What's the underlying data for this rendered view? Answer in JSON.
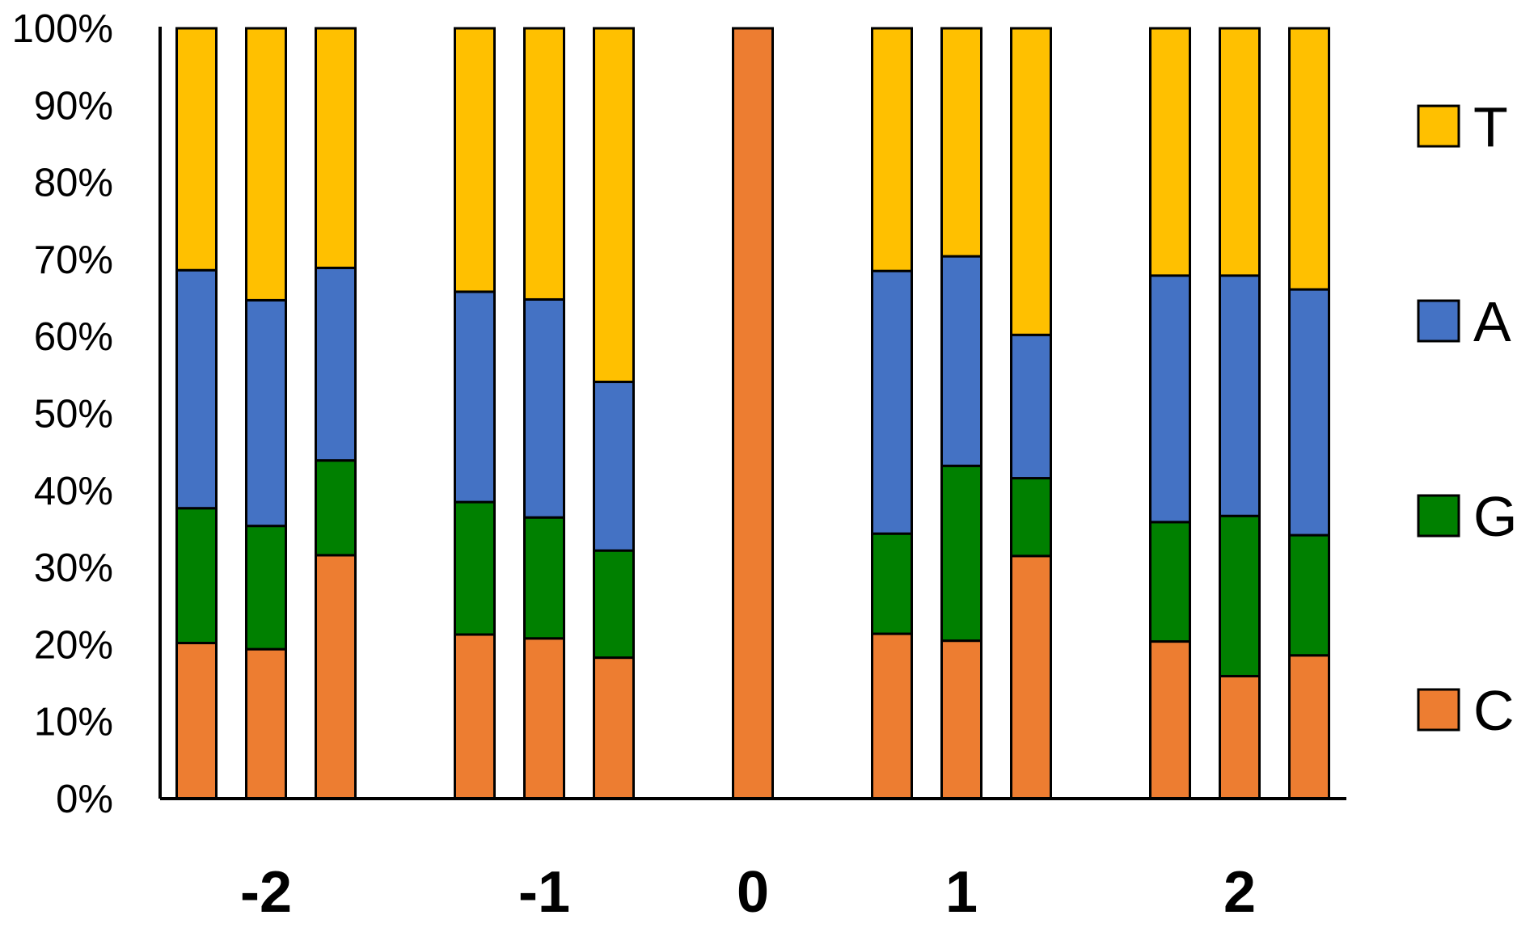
{
  "chart_data": {
    "type": "bar",
    "stacked": true,
    "normalized": true,
    "y_ticks": [
      "0%",
      "10%",
      "20%",
      "30%",
      "40%",
      "50%",
      "60%",
      "70%",
      "80%",
      "90%",
      "100%"
    ],
    "ylim": [
      0,
      100
    ],
    "grid": false,
    "legend_position": "right",
    "series": [
      {
        "name": "C",
        "color": "#ED7D31"
      },
      {
        "name": "G",
        "color": "#008000"
      },
      {
        "name": "A",
        "color": "#4472C4"
      },
      {
        "name": "T",
        "color": "#FFC000"
      }
    ],
    "groups": [
      {
        "label": "-2",
        "bars": [
          {
            "C": 20.2,
            "G": 17.5,
            "A": 30.9,
            "T": 31.4
          },
          {
            "C": 19.4,
            "G": 16.0,
            "A": 29.3,
            "T": 35.3
          },
          {
            "C": 31.6,
            "G": 12.3,
            "A": 25.0,
            "T": 31.1
          }
        ]
      },
      {
        "label": "-1",
        "bars": [
          {
            "C": 21.3,
            "G": 17.2,
            "A": 27.3,
            "T": 34.2
          },
          {
            "C": 20.8,
            "G": 15.7,
            "A": 28.3,
            "T": 35.2
          },
          {
            "C": 18.3,
            "G": 13.9,
            "A": 21.9,
            "T": 45.9
          }
        ]
      },
      {
        "label": "0",
        "bars": [
          {
            "C": 100,
            "G": 0,
            "A": 0,
            "T": 0
          }
        ]
      },
      {
        "label": "1",
        "bars": [
          {
            "C": 21.4,
            "G": 13.0,
            "A": 34.1,
            "T": 31.5
          },
          {
            "C": 20.5,
            "G": 22.7,
            "A": 27.2,
            "T": 29.6
          },
          {
            "C": 31.5,
            "G": 10.1,
            "A": 18.6,
            "T": 39.8
          }
        ]
      },
      {
        "label": "2",
        "bars": [
          {
            "C": 20.4,
            "G": 15.5,
            "A": 32.0,
            "T": 32.1
          },
          {
            "C": 15.9,
            "G": 20.8,
            "A": 31.2,
            "T": 32.1
          },
          {
            "C": 18.6,
            "G": 15.6,
            "A": 31.9,
            "T": 33.9
          }
        ]
      }
    ]
  }
}
